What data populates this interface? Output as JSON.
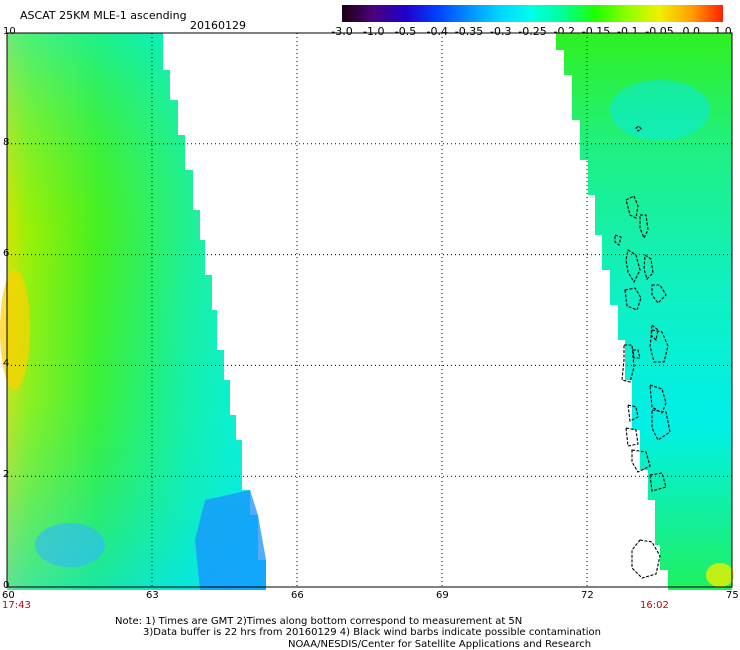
{
  "header": {
    "title": "ASCAT 25KM MLE-1 ascending",
    "date": "20160129"
  },
  "colorbar": {
    "labels": [
      "-3.0",
      "-1.0",
      "-0.5",
      "-0.4",
      "-0.35",
      "-0.3",
      "-0.25",
      "-0.2",
      "-0.15",
      "-0.1",
      "-0.05",
      "0.0",
      "1.0"
    ],
    "colors": [
      "#1a0010",
      "#4b0080",
      "#1e00c8",
      "#0040ff",
      "#0090ff",
      "#00d8ff",
      "#00ffe8",
      "#00ff90",
      "#20ff00",
      "#90ff00",
      "#f0f000",
      "#ffa000",
      "#ff2000"
    ]
  },
  "map": {
    "x_ticks": [
      "60",
      "63",
      "66",
      "69",
      "72",
      "75"
    ],
    "y_ticks": [
      "0",
      "2",
      "4",
      "6",
      "8",
      "10"
    ],
    "lon_range": [
      60,
      75
    ],
    "lat_range": [
      0,
      10
    ],
    "left_time": "17:43",
    "right_time": "16:02"
  },
  "footer": {
    "note_line1": "Note: 1) Times are GMT 2)Times along bottom correspond to measurement at 5N",
    "note_line2": "3)Data buffer is 22 hrs from 20160129 4) Black wind barbs indicate possible contamination",
    "credit": "NOAA/NESDIS/Center for Satellite Applications and Research"
  }
}
